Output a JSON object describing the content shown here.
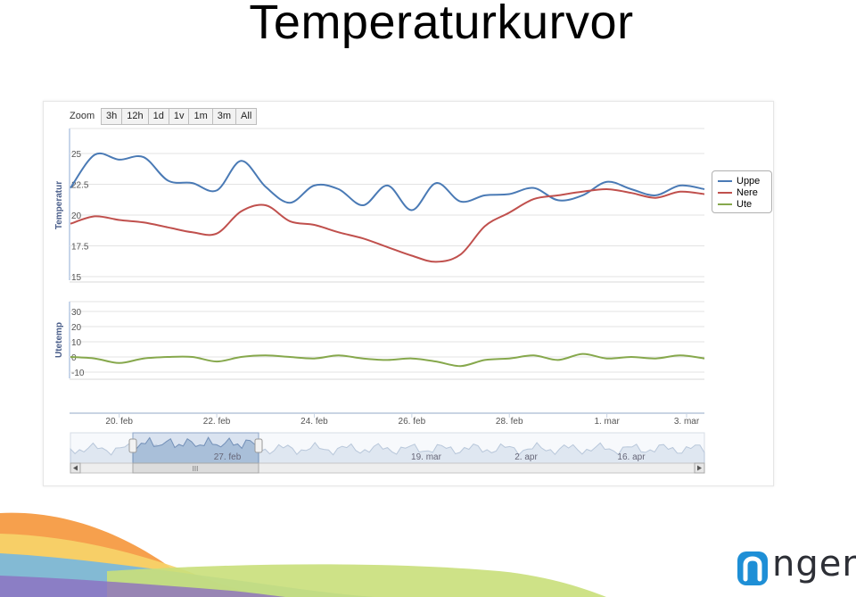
{
  "slide": {
    "title": "Temperaturkurvor"
  },
  "logo": {
    "text": "ngenic",
    "color": "#1e8fd6"
  },
  "zoom": {
    "label": "Zoom",
    "buttons": [
      "3h",
      "12h",
      "1d",
      "1v",
      "1m",
      "3m",
      "All"
    ]
  },
  "navigator": {
    "date_labels": [
      "27. feb",
      "19. mar",
      "2. apr",
      "16. apr"
    ],
    "scroll_left_icon": "arrow-left-icon",
    "scroll_right_icon": "arrow-right-icon",
    "grip_text": "III"
  },
  "colors": {
    "uppe": "#4a7ab5",
    "nere": "#c0504d",
    "ute": "#86a84c",
    "navigator_fill": "#a9bfd9"
  },
  "chart_data": [
    {
      "type": "line",
      "ylabel": "Temperatur",
      "ylim": [
        15,
        25
      ],
      "yticks": [
        "25",
        "22.5",
        "20",
        "17.5",
        "15"
      ],
      "xlim": [
        "2015-02-19",
        "2015-03-04"
      ],
      "xticks": [
        "20. feb",
        "22. feb",
        "24. feb",
        "26. feb",
        "28. feb",
        "1. mar",
        "3. mar"
      ],
      "legend_position": "right",
      "series": [
        {
          "name": "Uppe",
          "x": [
            "2015-02-19T00",
            "2015-02-19T12",
            "2015-02-20T00",
            "2015-02-20T12",
            "2015-02-21T00",
            "2015-02-21T12",
            "2015-02-22T00",
            "2015-02-22T12",
            "2015-02-23T00",
            "2015-02-23T12",
            "2015-02-24T00",
            "2015-02-24T12",
            "2015-02-25T00",
            "2015-02-25T12",
            "2015-02-26T00",
            "2015-02-26T12",
            "2015-02-27T00",
            "2015-02-27T12",
            "2015-02-28T00",
            "2015-02-28T12",
            "2015-03-01T00",
            "2015-03-01T12",
            "2015-03-02T00",
            "2015-03-02T12",
            "2015-03-03T00",
            "2015-03-03T12",
            "2015-03-04T00"
          ],
          "values": [
            22.2,
            24.9,
            24.5,
            24.7,
            22.8,
            22.6,
            22.0,
            24.4,
            22.3,
            21.0,
            22.4,
            22.1,
            20.8,
            22.4,
            20.4,
            22.6,
            21.1,
            21.6,
            21.7,
            22.2,
            21.2,
            21.6,
            22.7,
            22.1,
            21.6,
            22.4,
            22.1
          ]
        },
        {
          "name": "Nere",
          "x": [
            "2015-02-19T00",
            "2015-02-19T12",
            "2015-02-20T00",
            "2015-02-20T12",
            "2015-02-21T00",
            "2015-02-21T12",
            "2015-02-22T00",
            "2015-02-22T12",
            "2015-02-23T00",
            "2015-02-23T12",
            "2015-02-24T00",
            "2015-02-24T12",
            "2015-02-25T00",
            "2015-02-25T12",
            "2015-02-26T00",
            "2015-02-26T12",
            "2015-02-27T00",
            "2015-02-27T12",
            "2015-02-28T00",
            "2015-02-28T12",
            "2015-03-01T00",
            "2015-03-01T12",
            "2015-03-02T00",
            "2015-03-02T12",
            "2015-03-03T00",
            "2015-03-03T12",
            "2015-03-04T00"
          ],
          "values": [
            19.3,
            19.9,
            19.6,
            19.4,
            19.0,
            18.6,
            18.5,
            20.3,
            20.8,
            19.5,
            19.2,
            18.6,
            18.1,
            17.4,
            16.7,
            16.2,
            16.8,
            19.1,
            20.2,
            21.3,
            21.6,
            21.9,
            22.1,
            21.8,
            21.4,
            21.9,
            21.7
          ]
        }
      ]
    },
    {
      "type": "line",
      "ylabel": "Utetemp",
      "ylim": [
        -10,
        30
      ],
      "yticks": [
        "30",
        "20",
        "10",
        "0",
        "-10"
      ],
      "series": [
        {
          "name": "Ute",
          "x": [
            "2015-02-19T00",
            "2015-02-19T12",
            "2015-02-20T00",
            "2015-02-20T12",
            "2015-02-21T00",
            "2015-02-21T12",
            "2015-02-22T00",
            "2015-02-22T12",
            "2015-02-23T00",
            "2015-02-23T12",
            "2015-02-24T00",
            "2015-02-24T12",
            "2015-02-25T00",
            "2015-02-25T12",
            "2015-02-26T00",
            "2015-02-26T12",
            "2015-02-27T00",
            "2015-02-27T12",
            "2015-02-28T00",
            "2015-02-28T12",
            "2015-03-01T00",
            "2015-03-01T12",
            "2015-03-02T00",
            "2015-03-02T12",
            "2015-03-03T00",
            "2015-03-03T12",
            "2015-03-04T00"
          ],
          "values": [
            0,
            -1,
            -4,
            -1,
            0,
            0,
            -3,
            0,
            1,
            0,
            -1,
            1,
            -1,
            -2,
            -1,
            -3,
            -6,
            -2,
            -1,
            1,
            -2,
            2,
            -1,
            0,
            -1,
            1,
            -1
          ]
        }
      ]
    }
  ]
}
